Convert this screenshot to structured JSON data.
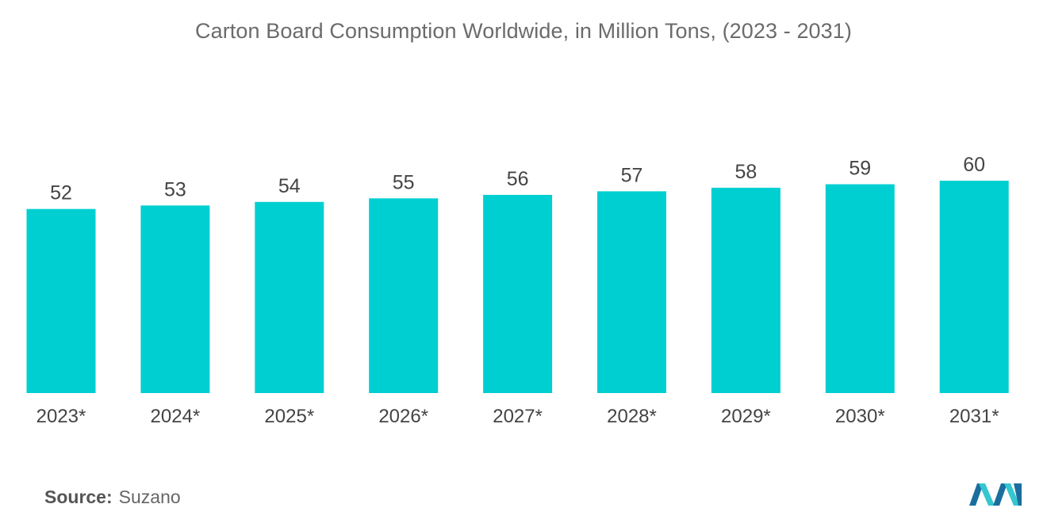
{
  "chart_data": {
    "type": "bar",
    "title": "Carton Board Consumption Worldwide, in Million Tons, (2023 - 2031)",
    "categories": [
      "2023*",
      "2024*",
      "2025*",
      "2026*",
      "2027*",
      "2028*",
      "2029*",
      "2030*",
      "2031*"
    ],
    "values": [
      52,
      53,
      54,
      55,
      56,
      57,
      58,
      59,
      60
    ],
    "xlabel": "",
    "ylabel": "",
    "ylim": [
      0,
      60
    ],
    "grid": false,
    "legend": "none",
    "bar_color": "#00cfd1"
  },
  "source": {
    "label": "Source:",
    "value": "Suzano"
  },
  "logo": {
    "icon": "mordor-intelligence-logo-icon",
    "colors": [
      "#1a6e9e",
      "#35c6cf"
    ]
  }
}
